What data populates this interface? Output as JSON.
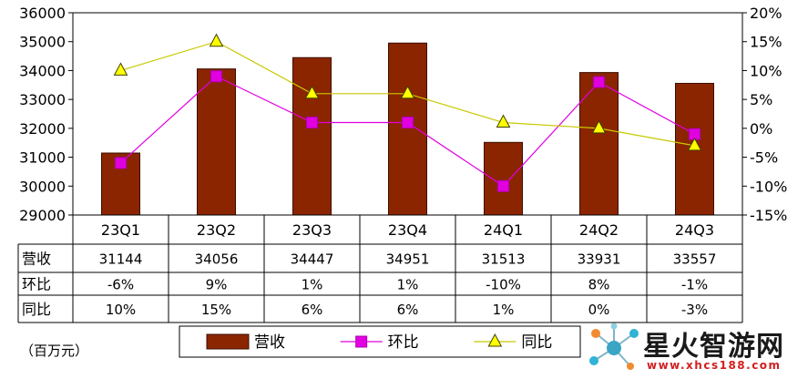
{
  "chart_data": {
    "type": "bar",
    "categories": [
      "23Q1",
      "23Q2",
      "23Q3",
      "23Q4",
      "24Q1",
      "24Q2",
      "24Q3"
    ],
    "series": [
      {
        "name": "营收",
        "type": "bar",
        "axis": "left",
        "color": "#8b2500",
        "values": [
          31144,
          34056,
          34447,
          34951,
          31513,
          33931,
          33557
        ]
      },
      {
        "name": "环比",
        "type": "line",
        "axis": "right",
        "color": "#e000e0",
        "marker": "square",
        "values": [
          -6,
          9,
          1,
          1,
          -10,
          8,
          -1
        ]
      },
      {
        "name": "同比",
        "type": "line",
        "axis": "right",
        "color": "#c8c800",
        "marker": "triangle",
        "values": [
          10,
          15,
          6,
          6,
          1,
          0,
          -3
        ]
      }
    ],
    "table": {
      "rows": [
        {
          "label": "营收",
          "cells": [
            "31144",
            "34056",
            "34447",
            "34951",
            "31513",
            "33931",
            "33557"
          ]
        },
        {
          "label": "环比",
          "cells": [
            "-6%",
            "9%",
            "1%",
            "1%",
            "-10%",
            "8%",
            "-1%"
          ]
        },
        {
          "label": "同比",
          "cells": [
            "10%",
            "15%",
            "6%",
            "6%",
            "1%",
            "0%",
            "-3%"
          ]
        }
      ]
    },
    "ylim": [
      29000,
      36000
    ],
    "yticks": [
      "29000",
      "30000",
      "31000",
      "32000",
      "33000",
      "34000",
      "35000",
      "36000"
    ],
    "y2lim": [
      -15,
      20
    ],
    "y2ticks": [
      "-15%",
      "-10%",
      "-5%",
      "0%",
      "5%",
      "10%",
      "15%",
      "20%"
    ],
    "legend": {
      "position": "bottom",
      "items": [
        "营收",
        "环比",
        "同比"
      ]
    },
    "grid": false
  },
  "unit_label": "（百万元）",
  "watermark": {
    "text": "星火智游网",
    "url": "www.xhcs188.com"
  }
}
